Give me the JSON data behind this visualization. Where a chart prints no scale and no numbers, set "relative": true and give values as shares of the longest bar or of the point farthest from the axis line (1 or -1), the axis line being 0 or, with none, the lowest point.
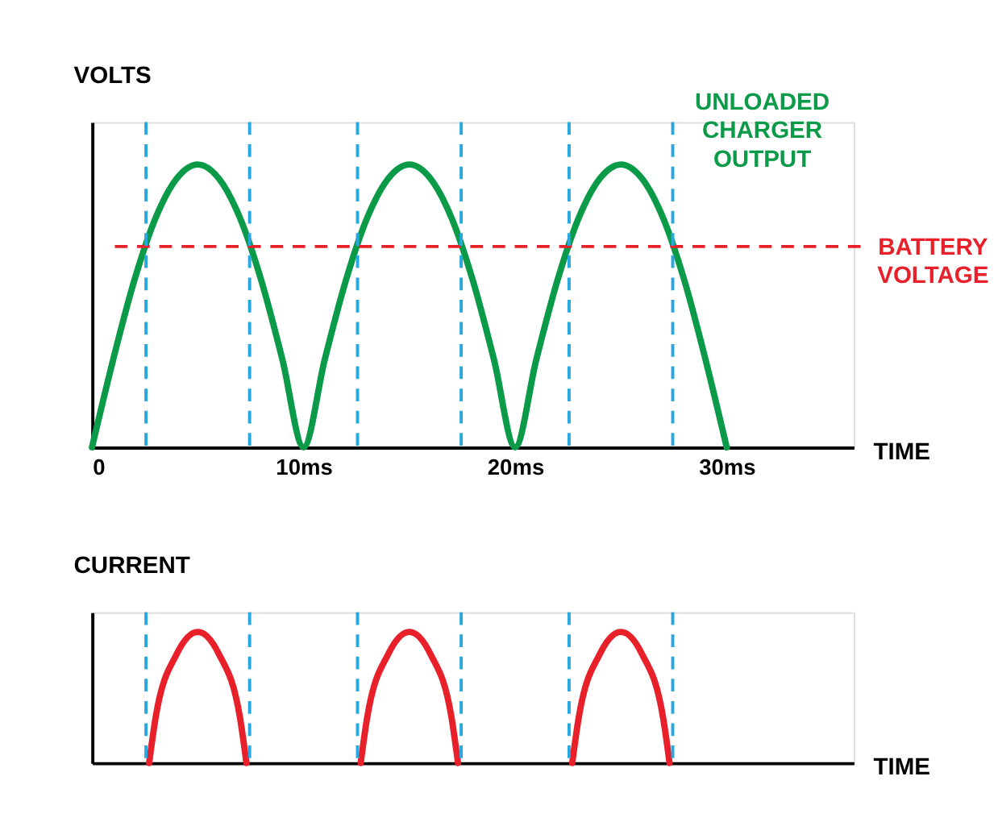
{
  "chart_data": [
    {
      "type": "line",
      "relative": true,
      "ylabel": "VOLTS",
      "xlabel": "TIME",
      "xlim": [
        0,
        36
      ],
      "xticks": [
        0,
        {
          "value": 10,
          "label": "10ms"
        },
        {
          "value": 20,
          "label": "20ms"
        },
        {
          "value": 30,
          "label": "30ms"
        }
      ],
      "tick_labels": "x",
      "grid": false,
      "legend": false,
      "line_style": "solid",
      "x": [
        0,
        1,
        2,
        3,
        4,
        5,
        6,
        7,
        8,
        9,
        10,
        11,
        12,
        13,
        14,
        15,
        16,
        17,
        18,
        19,
        20,
        21,
        22,
        23,
        24,
        25,
        26,
        27,
        28,
        29,
        30
      ],
      "series": [
        {
          "name": "UNLOADED CHARGER OUTPUT",
          "color": "#0a9a48",
          "values": [
            0,
            0.31,
            0.59,
            0.81,
            0.95,
            1,
            0.95,
            0.81,
            0.59,
            0.31,
            0,
            0.31,
            0.59,
            0.81,
            0.95,
            1,
            0.95,
            0.81,
            0.59,
            0.31,
            0,
            0.31,
            0.59,
            0.81,
            0.95,
            1,
            0.95,
            0.81,
            0.59,
            0.31,
            0
          ]
        }
      ],
      "ref_lines": [
        {
          "axis": "y",
          "value": 0.71,
          "label": "BATTERY VOLTAGE",
          "color": "#e8202a",
          "line_style": "dashed"
        },
        {
          "axis": "x",
          "value": 2.55,
          "color": "#29a8e0",
          "line_style": "dashed"
        },
        {
          "axis": "x",
          "value": 7.45,
          "color": "#29a8e0",
          "line_style": "dashed"
        },
        {
          "axis": "x",
          "value": 12.55,
          "color": "#29a8e0",
          "line_style": "dashed"
        },
        {
          "axis": "x",
          "value": 17.45,
          "color": "#29a8e0",
          "line_style": "dashed"
        },
        {
          "axis": "x",
          "value": 22.55,
          "color": "#29a8e0",
          "line_style": "dashed"
        },
        {
          "axis": "x",
          "value": 27.45,
          "color": "#29a8e0",
          "line_style": "dashed"
        }
      ]
    },
    {
      "type": "line",
      "relative": true,
      "ylabel": "CURRENT",
      "xlabel": "TIME",
      "xlim": [
        0,
        36
      ],
      "tick_labels": false,
      "grid": false,
      "legend": false,
      "line_style": "solid",
      "series": [
        {
          "color": "#e8202a",
          "x": [
            2.7,
            3,
            4,
            5,
            6,
            7,
            7.3,
            10,
            12.7,
            13,
            14,
            15,
            16,
            17,
            17.3,
            20,
            22.7,
            23,
            24,
            25,
            26,
            27,
            27.3
          ],
          "values": [
            0,
            0.34,
            0.83,
            1,
            0.83,
            0.34,
            0,
            null,
            0,
            0.34,
            0.83,
            1,
            0.83,
            0.34,
            0,
            null,
            0,
            0.34,
            0.83,
            1,
            0.83,
            0.34,
            0
          ]
        }
      ],
      "ref_lines": [
        {
          "axis": "x",
          "value": 2.55,
          "color": "#29a8e0",
          "line_style": "dashed"
        },
        {
          "axis": "x",
          "value": 7.45,
          "color": "#29a8e0",
          "line_style": "dashed"
        },
        {
          "axis": "x",
          "value": 12.55,
          "color": "#29a8e0",
          "line_style": "dashed"
        },
        {
          "axis": "x",
          "value": 17.45,
          "color": "#29a8e0",
          "line_style": "dashed"
        },
        {
          "axis": "x",
          "value": 22.55,
          "color": "#29a8e0",
          "line_style": "dashed"
        },
        {
          "axis": "x",
          "value": 27.45,
          "color": "#29a8e0",
          "line_style": "dashed"
        }
      ]
    }
  ]
}
